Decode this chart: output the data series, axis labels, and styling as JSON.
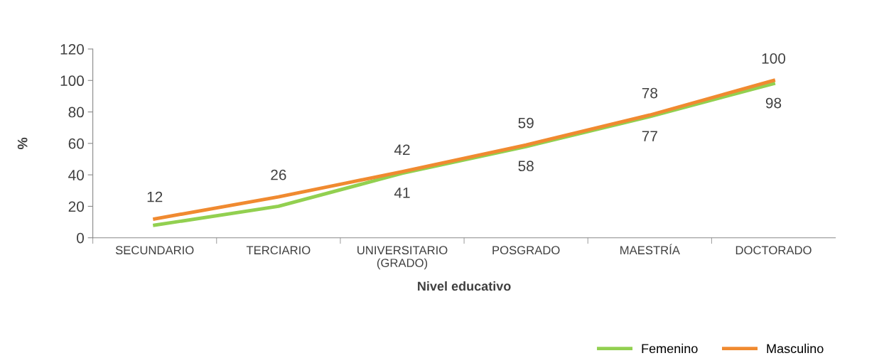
{
  "chart_data": {
    "type": "line",
    "xlabel": "Nivel educativo",
    "ylabel": "%",
    "categories": [
      "SECUNDARIO",
      "TERCIARIO",
      "UNIVERSITARIO\n(GRADO)",
      "POSGRADO",
      "MAESTRÍA",
      "DOCTORADO"
    ],
    "series": [
      {
        "name": "Femenino",
        "color": "#92d050",
        "values": [
          8,
          20,
          41,
          58,
          77,
          98
        ],
        "value_labels": [
          null,
          null,
          "41",
          "58",
          "77",
          "98"
        ]
      },
      {
        "name": "Masculino",
        "color": "#f08a30",
        "values": [
          12,
          26,
          42,
          59,
          78,
          100
        ],
        "value_labels": [
          "12",
          "26",
          "42",
          "59",
          "78",
          "100"
        ]
      }
    ],
    "ylim": [
      0,
      120
    ],
    "yticks": [
      0,
      20,
      40,
      60,
      80,
      100,
      120
    ],
    "grid": false,
    "legend": "bottom right",
    "marker": "none",
    "line_style": "solid"
  }
}
